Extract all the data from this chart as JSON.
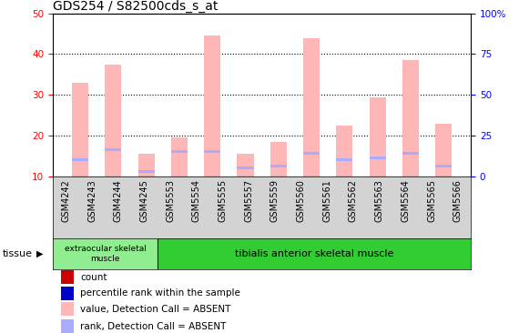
{
  "title": "GDS254 / S82500cds_s_at",
  "samples": [
    "GSM4242",
    "GSM4243",
    "GSM4244",
    "GSM4245",
    "GSM5553",
    "GSM5554",
    "GSM5555",
    "GSM5557",
    "GSM5559",
    "GSM5560",
    "GSM5561",
    "GSM5562",
    "GSM5563",
    "GSM5564",
    "GSM5565",
    "GSM5566"
  ],
  "pink_bar_tops": [
    10,
    10,
    10,
    10,
    33,
    37.5,
    15.5,
    19.5,
    44.5,
    15.5,
    18.5,
    44,
    22.5,
    29.5,
    38.5,
    23
  ],
  "blue_bar_tops": [
    10,
    10,
    10,
    10,
    14.5,
    17,
    11.5,
    16.5,
    16.5,
    12.5,
    13,
    16,
    14.5,
    15,
    16,
    13
  ],
  "baseline": 10,
  "ylim_left": [
    10,
    50
  ],
  "ylim_right": [
    0,
    100
  ],
  "yticks_left": [
    10,
    20,
    30,
    40,
    50
  ],
  "yticks_right": [
    0,
    25,
    50,
    75,
    100
  ],
  "ytick_labels_left": [
    "10",
    "20",
    "30",
    "40",
    "50"
  ],
  "ytick_labels_right": [
    "0",
    "25",
    "50",
    "75",
    "100%"
  ],
  "tissue_groups": [
    {
      "label": "extraocular skeletal\nmuscle",
      "start": 0,
      "end": 4,
      "color": "#90ee90"
    },
    {
      "label": "tibialis anterior skeletal muscle",
      "start": 4,
      "end": 16,
      "color": "#32cd32"
    }
  ],
  "tissue_label": "tissue",
  "pink_color": "#ffb6b6",
  "blue_color": "#aaaaff",
  "bar_width": 0.5,
  "legend_items": [
    {
      "color": "#cc0000",
      "label": "count"
    },
    {
      "color": "#0000cc",
      "label": "percentile rank within the sample"
    },
    {
      "color": "#ffb6b6",
      "label": "value, Detection Call = ABSENT"
    },
    {
      "color": "#aaaaff",
      "label": "rank, Detection Call = ABSENT"
    }
  ],
  "dotted_yticks": [
    20,
    30,
    40
  ],
  "title_fontsize": 10,
  "tick_fontsize": 7.5
}
